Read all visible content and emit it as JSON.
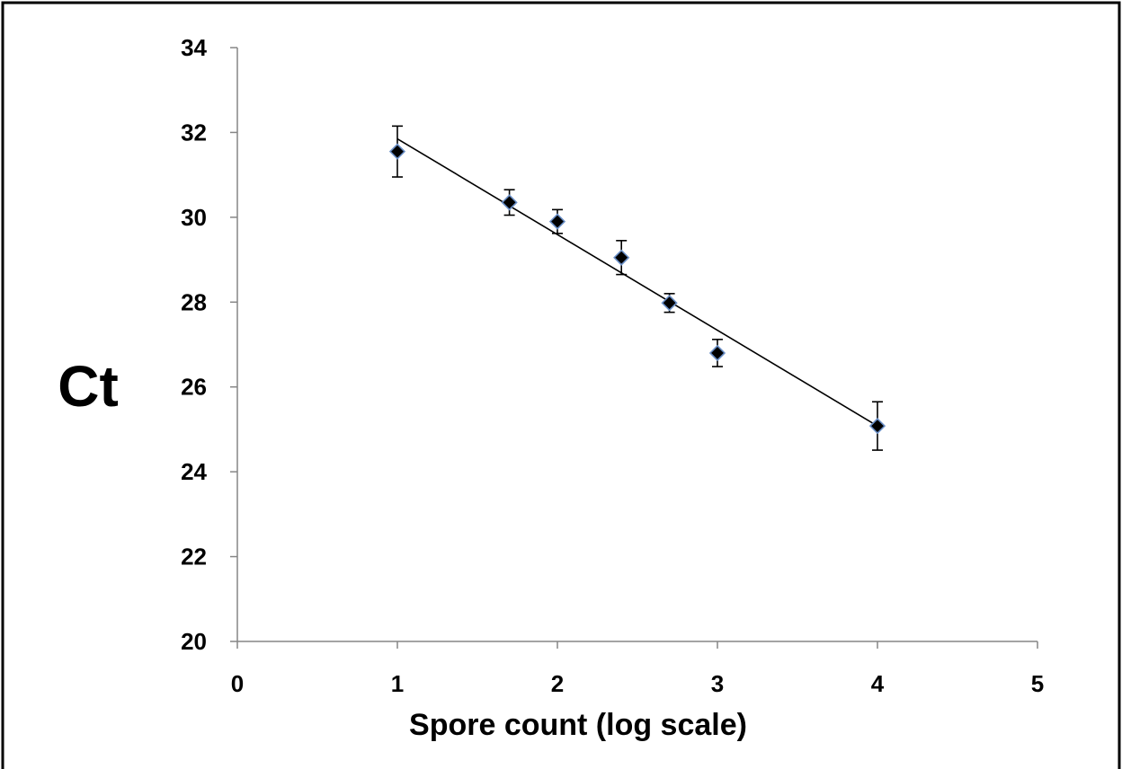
{
  "chart_data": {
    "type": "scatter",
    "xlabel": "Spore count (log scale)",
    "ylabel": "Ct",
    "xlim": [
      0,
      5
    ],
    "ylim": [
      20,
      34
    ],
    "x_ticks": [
      0,
      1,
      2,
      3,
      4,
      5
    ],
    "y_ticks": [
      20,
      22,
      24,
      26,
      28,
      30,
      32,
      34
    ],
    "grid": false,
    "legend": "none",
    "series": [
      {
        "points": [
          {
            "x": 1.0,
            "y": 31.55,
            "err": 0.6
          },
          {
            "x": 1.7,
            "y": 30.35,
            "err": 0.3
          },
          {
            "x": 2.0,
            "y": 29.9,
            "err": 0.28
          },
          {
            "x": 2.4,
            "y": 29.05,
            "err": 0.4
          },
          {
            "x": 2.7,
            "y": 27.98,
            "err": 0.22
          },
          {
            "x": 3.0,
            "y": 26.8,
            "err": 0.32
          },
          {
            "x": 4.0,
            "y": 25.08,
            "err": 0.57
          }
        ],
        "marker": "diamond",
        "marker_fill": "#000000",
        "marker_edge": "#6a8fc7"
      }
    ],
    "trendline": {
      "type": "linear",
      "x_start": 1.0,
      "y_start": 31.85,
      "x_end": 4.0,
      "y_end": 25.08
    },
    "colors": {
      "axis": "#868686",
      "trendline": "#000000",
      "error_bar": "#000000",
      "frame": "#000000"
    }
  }
}
